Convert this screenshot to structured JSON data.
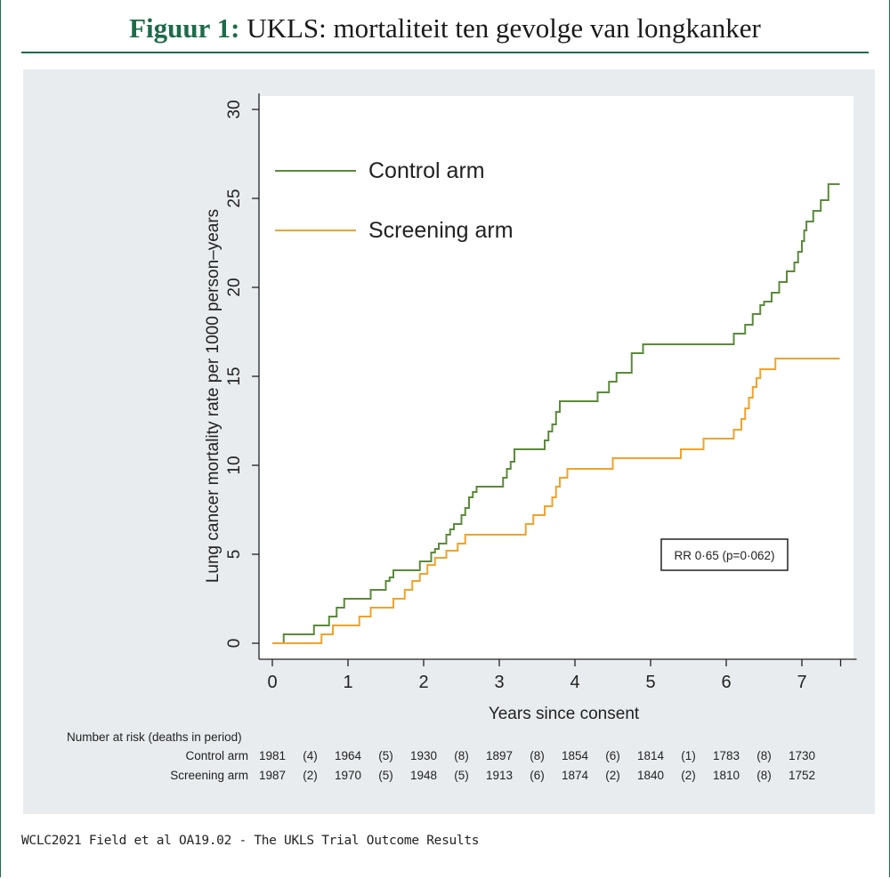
{
  "header": {
    "lead": "Figuur 1:",
    "text": "UKLS: mortaliteit ten gevolge van longkanker"
  },
  "caption": "WCLC2021 Field et al OA19.02 - The UKLS Trial Outcome Results",
  "colors": {
    "accent": "#1e6b4a",
    "control": "#5b8a3a",
    "screening": "#f0a32a",
    "panel": "#e9ecef"
  },
  "chart_data": {
    "type": "line",
    "step": true,
    "xlabel": "Years since consent",
    "ylabel": "Lung cancer mortality rate per 1000 person–years",
    "xlim": [
      -0.15,
      7.5
    ],
    "ylim": [
      0,
      30
    ],
    "xticks": [
      "0",
      "1",
      "2",
      "3",
      "4",
      "5",
      "6",
      "7"
    ],
    "yticks": [
      "0",
      "5",
      "10",
      "15",
      "20",
      "25",
      "30"
    ],
    "legend": [
      "Control arm",
      "Screening arm"
    ],
    "legend_position": "top-left",
    "annotation": "RR 0·65 (p=0·062)",
    "series": [
      {
        "name": "Control arm",
        "x": [
          0,
          0.15,
          0.55,
          0.75,
          0.85,
          0.95,
          1.0,
          1.3,
          1.5,
          1.55,
          1.6,
          1.7,
          1.95,
          2.1,
          2.15,
          2.2,
          2.3,
          2.35,
          2.4,
          2.5,
          2.55,
          2.6,
          2.65,
          2.7,
          2.75,
          2.8,
          3.05,
          3.1,
          3.15,
          3.2,
          3.25,
          3.6,
          3.65,
          3.7,
          3.75,
          3.8,
          3.9,
          4.3,
          4.45,
          4.55,
          4.75,
          4.9,
          5.1,
          5.2,
          6.1,
          6.25,
          6.35,
          6.45,
          6.5,
          6.6,
          6.7,
          6.8,
          6.9,
          6.95,
          7.0,
          7.03,
          7.06,
          7.15,
          7.25,
          7.35,
          7.5
        ],
        "y": [
          0,
          0.5,
          1.0,
          1.5,
          2.0,
          2.5,
          2.5,
          3.0,
          3.5,
          3.7,
          4.1,
          4.1,
          4.6,
          5.1,
          5.3,
          5.6,
          6.1,
          6.4,
          6.7,
          7.2,
          7.6,
          8.2,
          8.5,
          8.8,
          8.8,
          8.8,
          9.3,
          9.8,
          10.2,
          10.9,
          10.9,
          11.4,
          11.9,
          12.3,
          13.0,
          13.6,
          13.6,
          14.1,
          14.7,
          15.2,
          16.3,
          16.8,
          16.8,
          16.8,
          17.4,
          17.9,
          18.5,
          19.0,
          19.2,
          19.7,
          20.3,
          20.9,
          21.4,
          22.0,
          22.6,
          23.2,
          23.7,
          24.3,
          24.9,
          25.8,
          25.8
        ]
      },
      {
        "name": "Screening arm",
        "x": [
          0,
          0.65,
          0.8,
          1.0,
          1.15,
          1.3,
          1.4,
          1.6,
          1.75,
          1.85,
          1.95,
          2.05,
          2.15,
          2.3,
          2.45,
          2.55,
          2.85,
          3.35,
          3.45,
          3.6,
          3.7,
          3.75,
          3.8,
          3.9,
          4.05,
          4.5,
          4.7,
          5.4,
          5.7,
          6.1,
          6.2,
          6.25,
          6.3,
          6.35,
          6.4,
          6.45,
          6.55,
          6.65,
          7.5
        ],
        "y": [
          0,
          0.5,
          1.0,
          1.0,
          1.5,
          2.0,
          2.0,
          2.5,
          3.0,
          3.5,
          3.9,
          4.4,
          4.8,
          5.2,
          5.6,
          6.1,
          6.1,
          6.7,
          7.2,
          7.7,
          8.2,
          8.8,
          9.3,
          9.8,
          9.8,
          10.4,
          10.4,
          10.9,
          11.5,
          12.0,
          12.6,
          13.2,
          13.8,
          14.4,
          14.9,
          15.4,
          15.4,
          16.0,
          16.0
        ]
      }
    ],
    "at_risk": {
      "title": "Number at risk (deaths in period)",
      "rows": [
        {
          "label": "Control arm",
          "values": [
            "1981",
            "(4)",
            "1964",
            "(5)",
            "1930",
            "(8)",
            "1897",
            "(8)",
            "1854",
            "(6)",
            "1814",
            "(1)",
            "1783",
            "(8)",
            "1730"
          ]
        },
        {
          "label": "Screening arm",
          "values": [
            "1987",
            "(2)",
            "1970",
            "(5)",
            "1948",
            "(5)",
            "1913",
            "(6)",
            "1874",
            "(2)",
            "1840",
            "(2)",
            "1810",
            "(8)",
            "1752"
          ]
        }
      ]
    }
  }
}
